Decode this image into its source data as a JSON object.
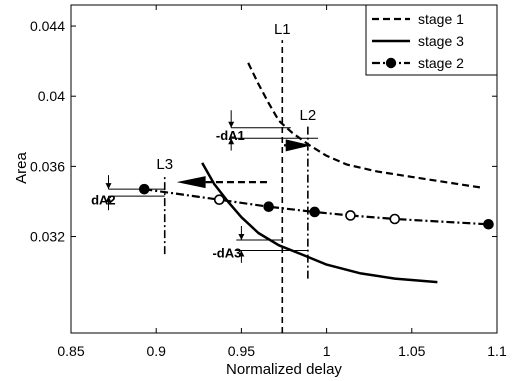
{
  "chart_data": {
    "type": "line",
    "title": "",
    "xlabel": "Normalized delay",
    "ylabel": "Area",
    "xlim": [
      0.85,
      1.1
    ],
    "ylim": [
      0.0265,
      0.0452
    ],
    "xticks": [
      0.85,
      0.9,
      0.95,
      1.0,
      1.05,
      1.1
    ],
    "xtick_labels": [
      "0.85",
      "0.9",
      "0.95",
      "1",
      "1.05",
      "1.1"
    ],
    "yticks": [
      0.032,
      0.036,
      0.04,
      0.044
    ],
    "ytick_labels": [
      "0.032",
      "0.036",
      "0.04",
      "0.044"
    ],
    "grid": false,
    "legend_position": "top-right",
    "series": [
      {
        "name": "stage 1",
        "style": "dashed",
        "color": "#000000",
        "x": [
          0.954,
          0.96,
          0.966,
          0.972,
          0.98,
          0.99,
          1.0,
          1.012,
          1.03,
          1.05,
          1.07,
          1.09
        ],
        "y": [
          0.0419,
          0.0407,
          0.0396,
          0.0386,
          0.0379,
          0.0372,
          0.0366,
          0.0361,
          0.0357,
          0.0354,
          0.0351,
          0.0348
        ]
      },
      {
        "name": "stage 3",
        "style": "solid",
        "color": "#000000",
        "x": [
          0.927,
          0.934,
          0.942,
          0.95,
          0.96,
          0.972,
          0.985,
          1.0,
          1.02,
          1.04,
          1.065
        ],
        "y": [
          0.0362,
          0.035,
          0.034,
          0.0331,
          0.0322,
          0.0315,
          0.031,
          0.0304,
          0.0299,
          0.0296,
          0.0294
        ]
      },
      {
        "name": "stage 2",
        "style": "dash-dot",
        "marker": "circle",
        "color": "#000000",
        "x": [
          0.893,
          0.937,
          0.966,
          0.993,
          1.014,
          1.04,
          1.095
        ],
        "y": [
          0.0347,
          0.0341,
          0.0337,
          0.0334,
          0.0332,
          0.033,
          0.0327
        ],
        "marker_fill": [
          "#000000",
          "#ffffff",
          "#000000",
          "#000000",
          "#ffffff",
          "#ffffff",
          "#000000"
        ]
      }
    ],
    "reference_lines": [
      {
        "label": "L1",
        "x": 0.974,
        "y_from": 0.0265,
        "y_to": 0.0432,
        "style": "dashed"
      },
      {
        "label": "L2",
        "x": 0.989,
        "y_from": 0.0296,
        "y_to": 0.0383,
        "style": "dash-dot"
      },
      {
        "label": "L3",
        "x": 0.905,
        "y_from": 0.031,
        "y_to": 0.0355,
        "style": "dash-dot"
      }
    ],
    "annotations": [
      {
        "text": "-dA1",
        "x": 0.9435,
        "y": 0.0378
      },
      {
        "text": "dA2",
        "x": 0.869,
        "y": 0.0341
      },
      {
        "text": "-dA3",
        "x": 0.9415,
        "y": 0.0311
      }
    ]
  }
}
